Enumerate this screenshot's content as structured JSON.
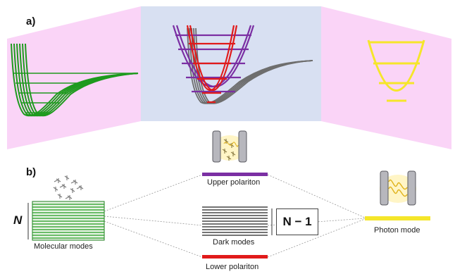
{
  "panel_a": {
    "tag": "a)"
  },
  "panel_b": {
    "tag": "b)",
    "n_symbol": "N",
    "n_minus_one": "N − 1",
    "labels": {
      "molecular": "Molecular modes",
      "upper": "Upper polariton",
      "dark": "Dark modes",
      "lower": "Lower polariton",
      "photon": "Photon mode"
    }
  },
  "colors": {
    "molecular": "#1e9a1e",
    "photon": "#f5e62a",
    "upper": "#7b2fa3",
    "lower": "#e11a1a",
    "dark": "#222222",
    "pink_bg": "#fad4f7",
    "blue_bg": "#d8e0f2"
  }
}
